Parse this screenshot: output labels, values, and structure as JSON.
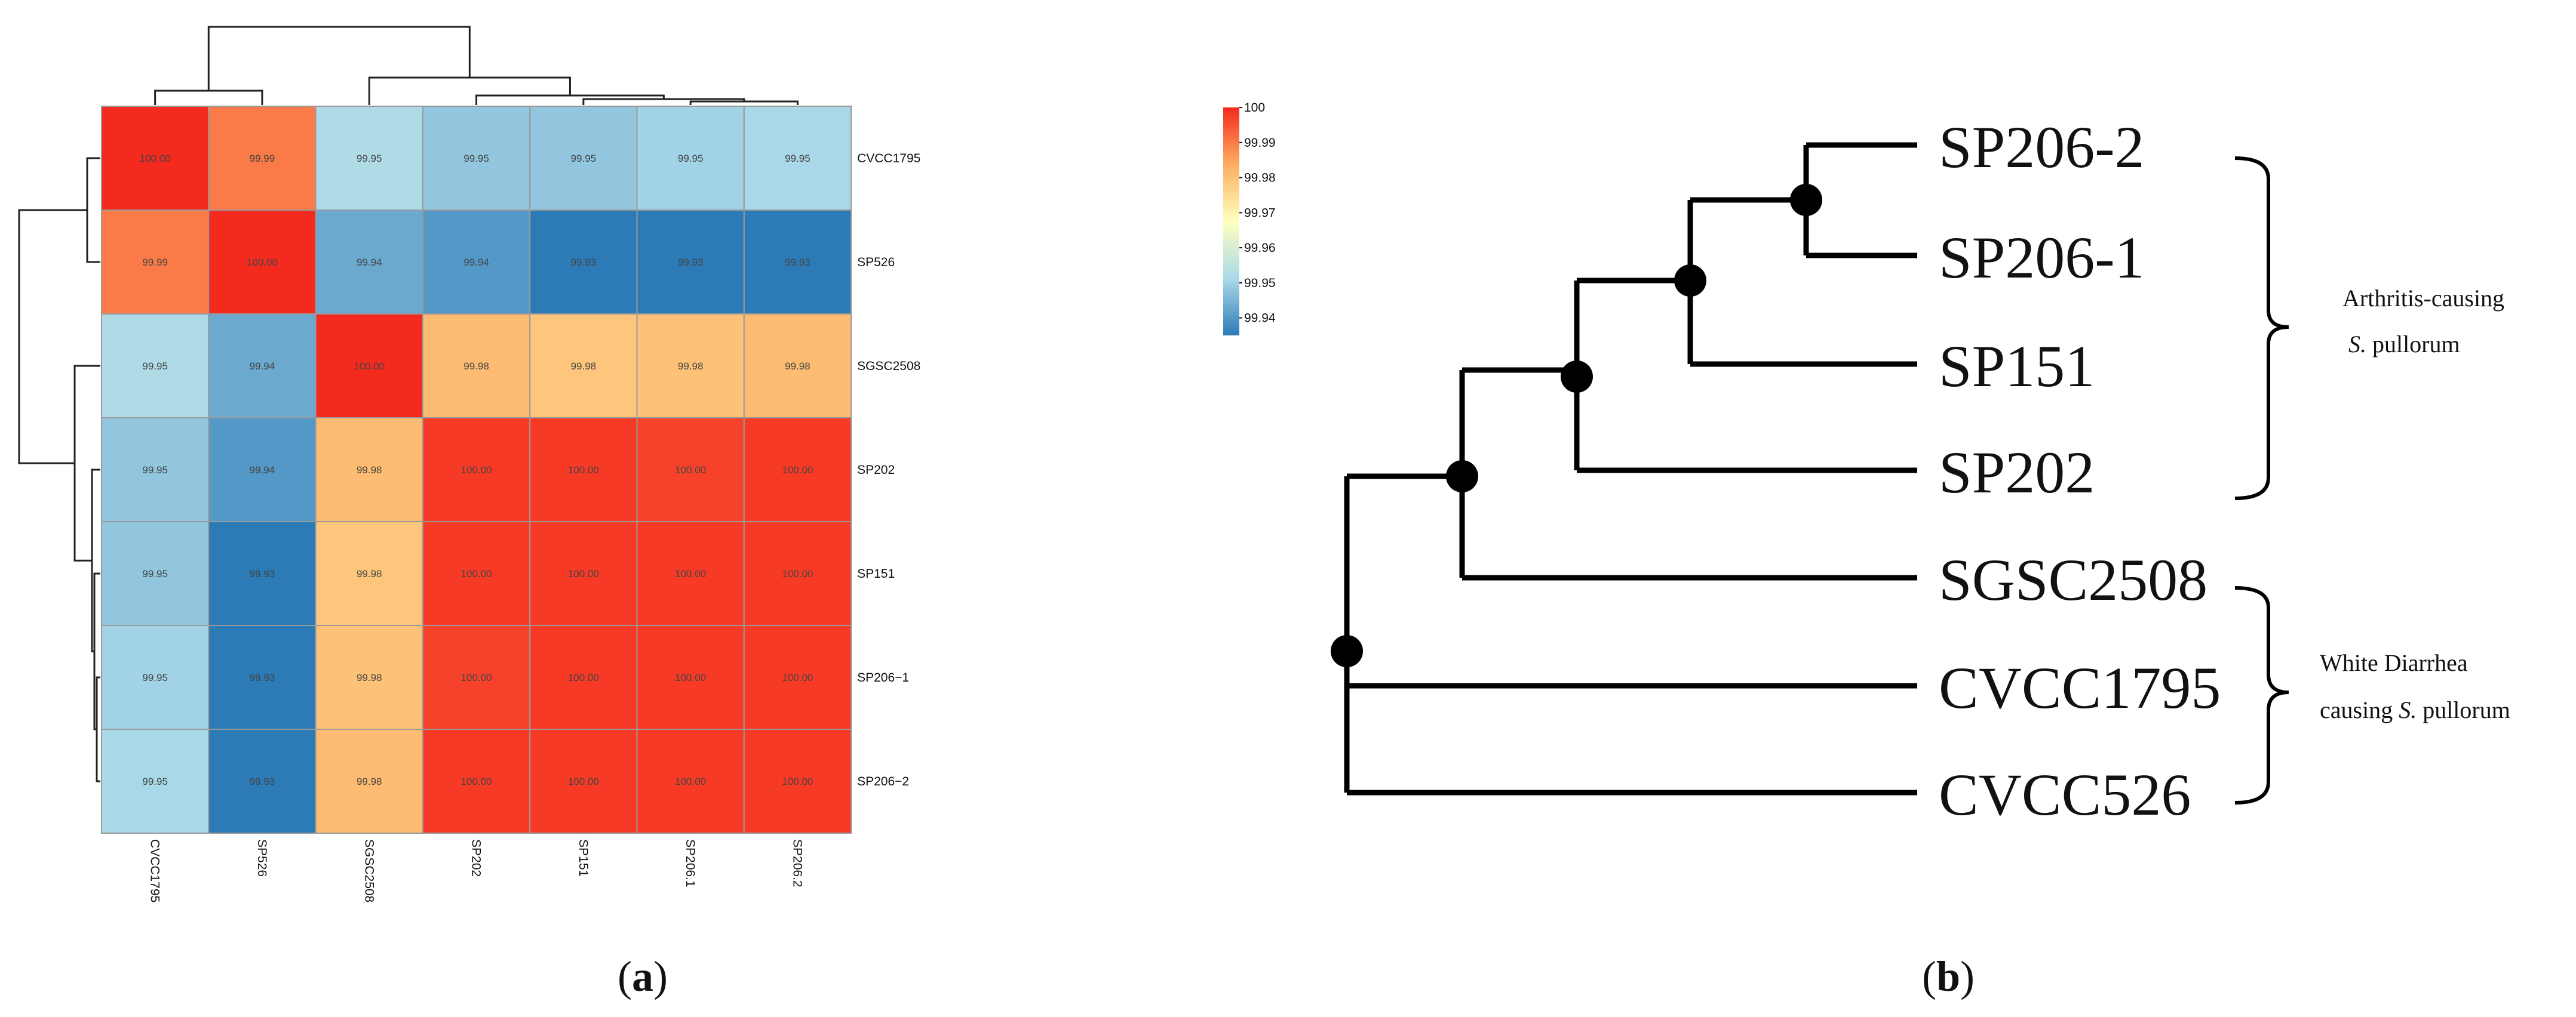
{
  "panels": {
    "a_prefix": "(",
    "a_letter": "a",
    "a_suffix": ")",
    "b_prefix": "(",
    "b_letter": "b",
    "b_suffix": ")"
  },
  "chart_data": [
    {
      "type": "heatmap",
      "title": "",
      "rows": [
        "CVCC1795",
        "SP526",
        "SGSC2508",
        "SP202",
        "SP151",
        "SP206−1",
        "SP206−2"
      ],
      "columns": [
        "CVCC1795",
        "SP526",
        "SGSC2508",
        "SP202",
        "SP151",
        "SP206.1",
        "SP206.2"
      ],
      "cell_labels": [
        [
          "100.00",
          "99.99",
          "99.95",
          "99.95",
          "99.95",
          "99.95",
          "99.95"
        ],
        [
          "99.99",
          "100.00",
          "99.94",
          "99.94",
          "99.93",
          "99.93",
          "99.93"
        ],
        [
          "99.95",
          "99.94",
          "100.00",
          "99.98",
          "99.98",
          "99.98",
          "99.98"
        ],
        [
          "99.95",
          "99.94",
          "99.98",
          "100.00",
          "100.00",
          "100.00",
          "100.00"
        ],
        [
          "99.95",
          "99.93",
          "99.98",
          "100.00",
          "100.00",
          "100.00",
          "100.00"
        ],
        [
          "99.95",
          "99.93",
          "99.98",
          "100.00",
          "100.00",
          "100.00",
          "100.00"
        ],
        [
          "99.95",
          "99.93",
          "99.98",
          "100.00",
          "100.00",
          "100.00",
          "100.00"
        ]
      ],
      "values": [
        [
          100.0,
          99.99,
          99.952,
          99.948,
          99.948,
          99.95,
          99.951
        ],
        [
          99.99,
          100.0,
          99.943,
          99.94,
          99.932,
          99.931,
          99.931
        ],
        [
          99.952,
          99.943,
          100.0,
          99.981,
          99.979,
          99.98,
          99.981
        ],
        [
          99.948,
          99.94,
          99.981,
          99.998,
          99.998,
          99.997,
          99.998
        ],
        [
          99.948,
          99.932,
          99.979,
          99.998,
          99.998,
          99.998,
          99.998
        ],
        [
          99.95,
          99.931,
          99.98,
          99.997,
          99.998,
          99.998,
          99.998
        ],
        [
          99.951,
          99.931,
          99.981,
          99.998,
          99.998,
          99.998,
          99.998
        ]
      ],
      "color_scale": {
        "min": 99.935,
        "max": 100,
        "ticks": [
          "100",
          "99.99",
          "99.98",
          "99.97",
          "99.96",
          "99.95",
          "99.94"
        ],
        "colors": [
          "#2C7BB6",
          "#ABD9E9",
          "#FFFFBF",
          "#FDAE61",
          "#F52A1E"
        ]
      },
      "col_dendrogram": "((CVCC1795,SP526),(SGSC2508,(SP202,(SP151,(SP206.1,SP206.2)))))",
      "row_dendrogram": "((CVCC1795,SP526),(SGSC2508,(SP202,(SP151,(SP206-1,SP206-2)))))"
    },
    {
      "type": "dendrogram",
      "title": "",
      "leaves": [
        "SP206-2",
        "SP206-1",
        "SP151",
        "SP202",
        "SGSC2508",
        "CVCC1795",
        "CVCC526"
      ],
      "tree": "(((((SP206-2,SP206-1),SP151),SP202),SGSC2508),CVCC1795,CVCC526)",
      "groups": [
        {
          "line1": "Arthritis-causing",
          "line2_italic": "S.",
          "line2_rest": " pullorum",
          "members": [
            "SP206-2",
            "SP206-1",
            "SP151",
            "SP202"
          ]
        },
        {
          "line1": "White Diarrhea",
          "line2_prefix": "causing ",
          "line2_italic": "S.",
          "line2_rest": " pullorum",
          "members": [
            "SGSC2508",
            "CVCC1795",
            "CVCC526"
          ]
        }
      ]
    }
  ]
}
